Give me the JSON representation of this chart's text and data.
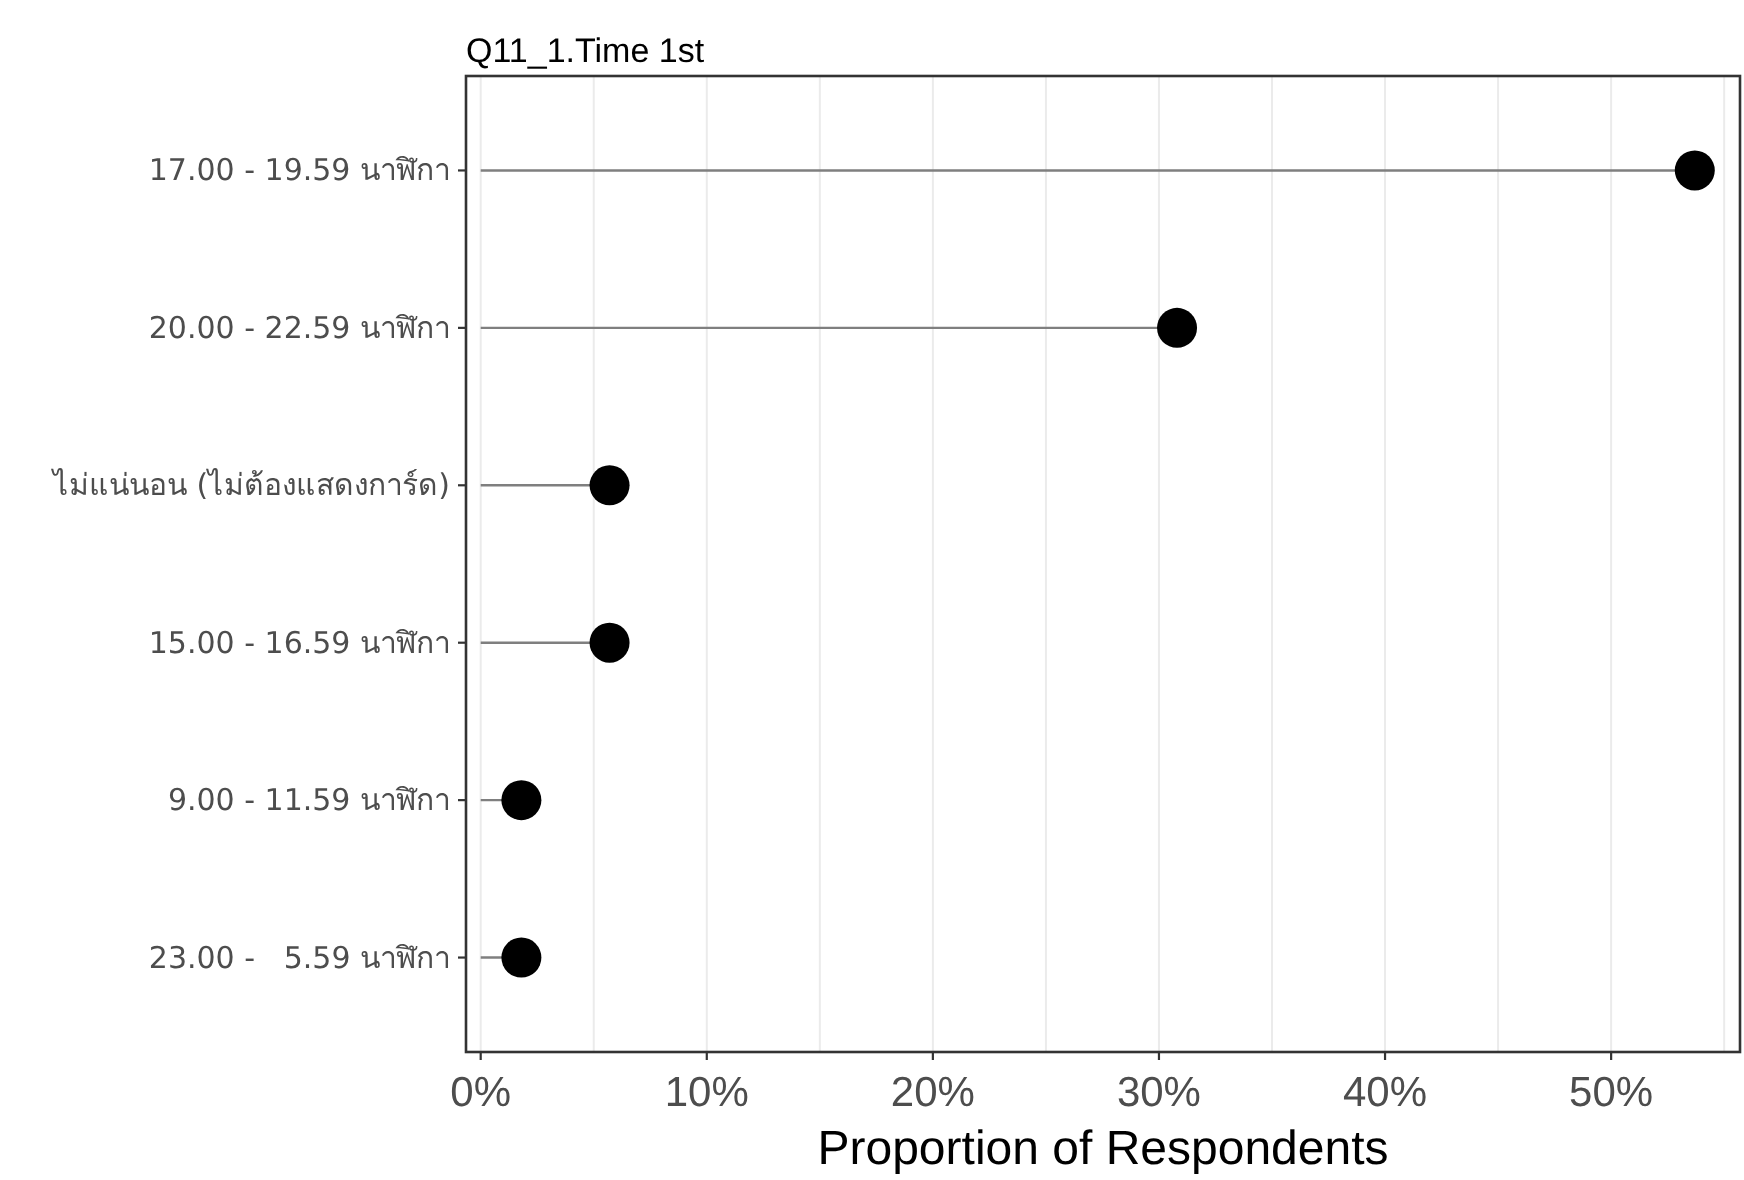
{
  "chart_data": {
    "type": "lollipop",
    "orientation": "horizontal",
    "title": "Q11_1.Time 1st",
    "xlabel": "Proportion of Respondents",
    "categories": [
      "17.00 - 19.59 นาฬิกา",
      "20.00 - 22.59 นาฬิกา",
      "ไม่แน่นอน (ไม่ต้องแสดงการ์ด)",
      "15.00 - 16.59 นาฬิกา",
      "9.00 - 11.59 นาฬิกา",
      "23.00 -   5.59 นาฬิกา"
    ],
    "values": [
      53.7,
      30.8,
      5.7,
      5.7,
      1.8,
      1.8
    ],
    "color": "#000000",
    "marker": "circle",
    "grid": "x",
    "xlim": [
      -0.65,
      55.7
    ],
    "xticks": [
      {
        "value": 0,
        "label": "0%"
      },
      {
        "value": 10,
        "label": "10%"
      },
      {
        "value": 20,
        "label": "20%"
      },
      {
        "value": 30,
        "label": "30%"
      },
      {
        "value": 40,
        "label": "40%"
      },
      {
        "value": 50,
        "label": "50%"
      }
    ]
  }
}
